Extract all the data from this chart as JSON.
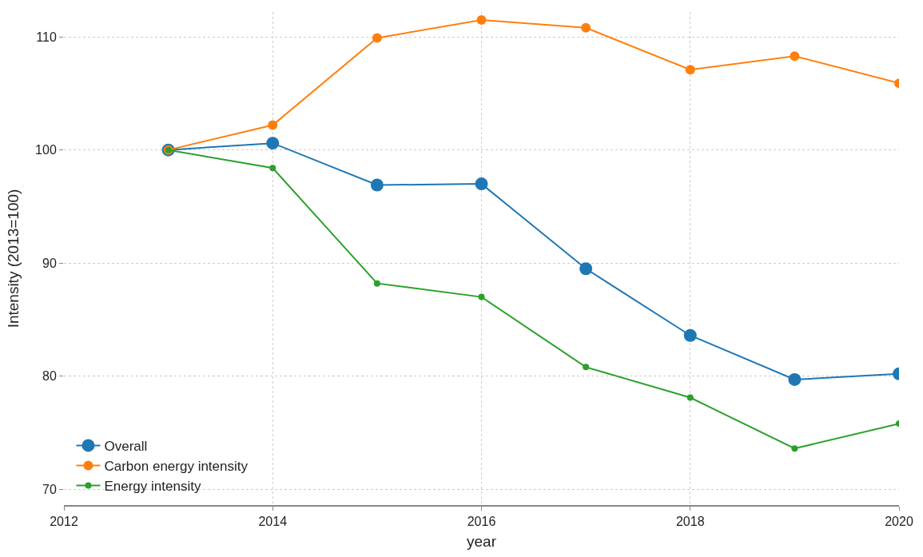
{
  "chart_data": {
    "type": "line",
    "xlabel": "year",
    "ylabel": "Intensity (2013=100)",
    "x": [
      2013,
      2014,
      2015,
      2016,
      2017,
      2018,
      2019,
      2020
    ],
    "series": [
      {
        "name": "Overall",
        "color": "#1f77b4",
        "values": [
          100,
          100.6,
          96.9,
          97.0,
          89.5,
          83.6,
          79.7,
          80.2
        ]
      },
      {
        "name": "Carbon energy intensity",
        "color": "#ff7f0e",
        "values": [
          100,
          102.2,
          109.9,
          111.5,
          110.8,
          107.1,
          108.3,
          105.9
        ]
      },
      {
        "name": "Energy intensity",
        "color": "#2ca02c",
        "values": [
          100,
          98.4,
          88.2,
          87.0,
          80.8,
          78.1,
          73.6,
          75.8
        ]
      }
    ],
    "xlim": [
      2012,
      2020
    ],
    "xticks": [
      2012,
      2014,
      2016,
      2018,
      2020
    ],
    "ylim": [
      68.6,
      112.2
    ],
    "yticks": [
      70,
      80,
      90,
      100,
      110
    ],
    "grid": true,
    "legend": "bottom left",
    "marker": "circle",
    "line_style": "solid"
  }
}
